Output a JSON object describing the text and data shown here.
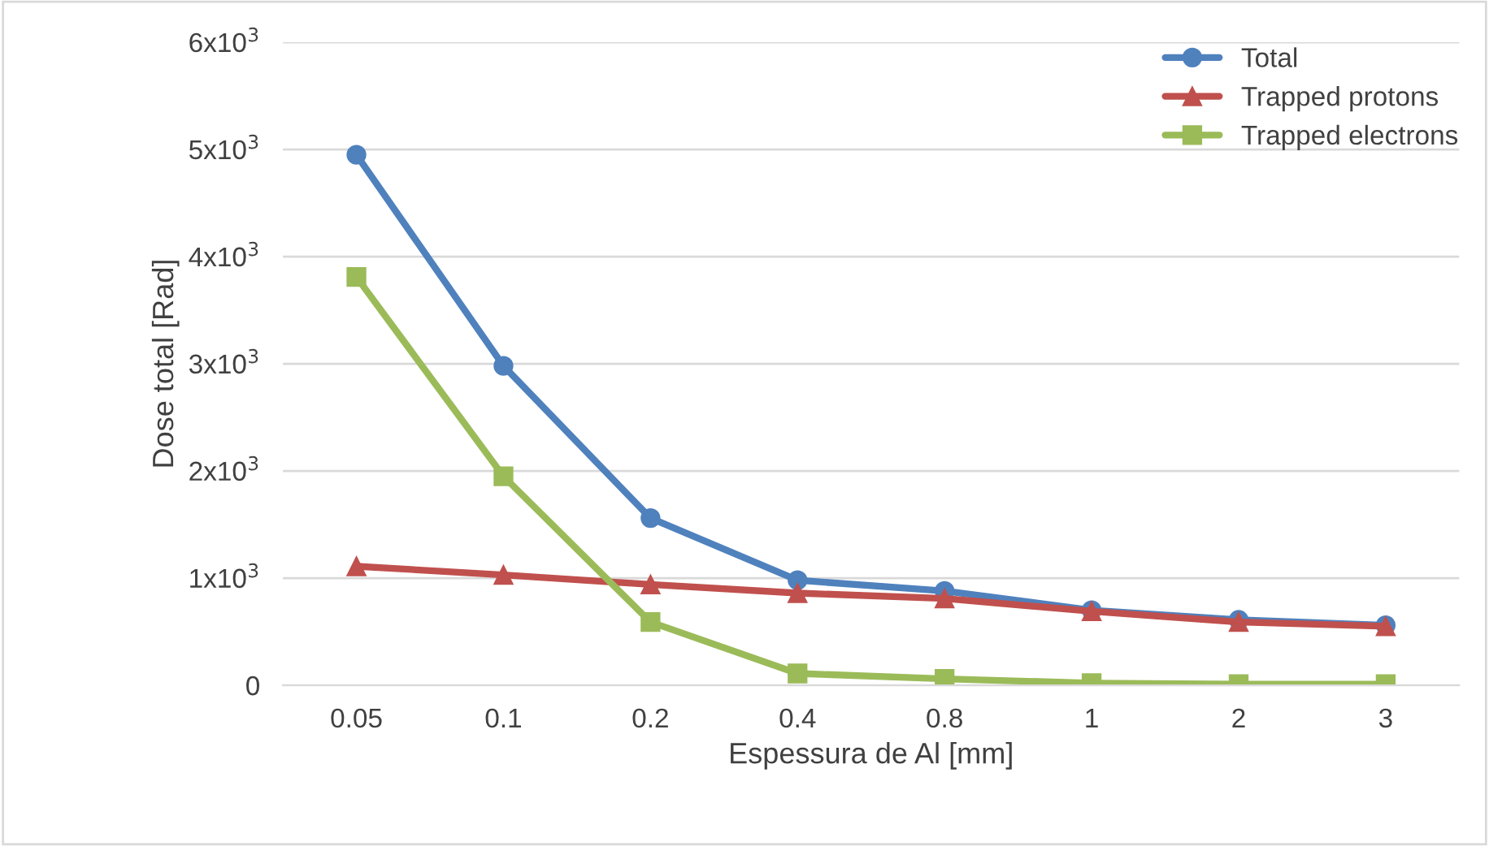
{
  "chart_data": {
    "type": "line",
    "xlabel": "Espessura de Al [mm]",
    "ylabel": "Dose total [Rad]",
    "categories": [
      "0.05",
      "0.1",
      "0.2",
      "0.4",
      "0.8",
      "1",
      "2",
      "3"
    ],
    "series": [
      {
        "name": "Total",
        "color": "#4f81bd",
        "marker": "circle",
        "values": [
          4950,
          2980,
          1560,
          980,
          880,
          700,
          610,
          560
        ]
      },
      {
        "name": "Trapped protons",
        "color": "#c0504d",
        "marker": "triangle",
        "values": [
          1110,
          1030,
          940,
          860,
          810,
          690,
          590,
          550
        ]
      },
      {
        "name": "Trapped electrons",
        "color": "#9bbb59",
        "marker": "square",
        "values": [
          3810,
          1950,
          590,
          110,
          60,
          20,
          10,
          10
        ]
      }
    ],
    "ylim": [
      0,
      6000
    ],
    "yticks": [
      {
        "value": 0,
        "label": "0"
      },
      {
        "value": 1000,
        "label": "1x10$^{3}$"
      },
      {
        "value": 2000,
        "label": "2x10$^{3}$"
      },
      {
        "value": 3000,
        "label": "3x10$^{3}$"
      },
      {
        "value": 4000,
        "label": "4x10$^{3}$"
      },
      {
        "value": 5000,
        "label": "5x10$^{3}$"
      },
      {
        "value": 6000,
        "label": "6x10$^{3}$"
      }
    ],
    "grid": "y",
    "legend": "top right",
    "line_style": "solid"
  }
}
